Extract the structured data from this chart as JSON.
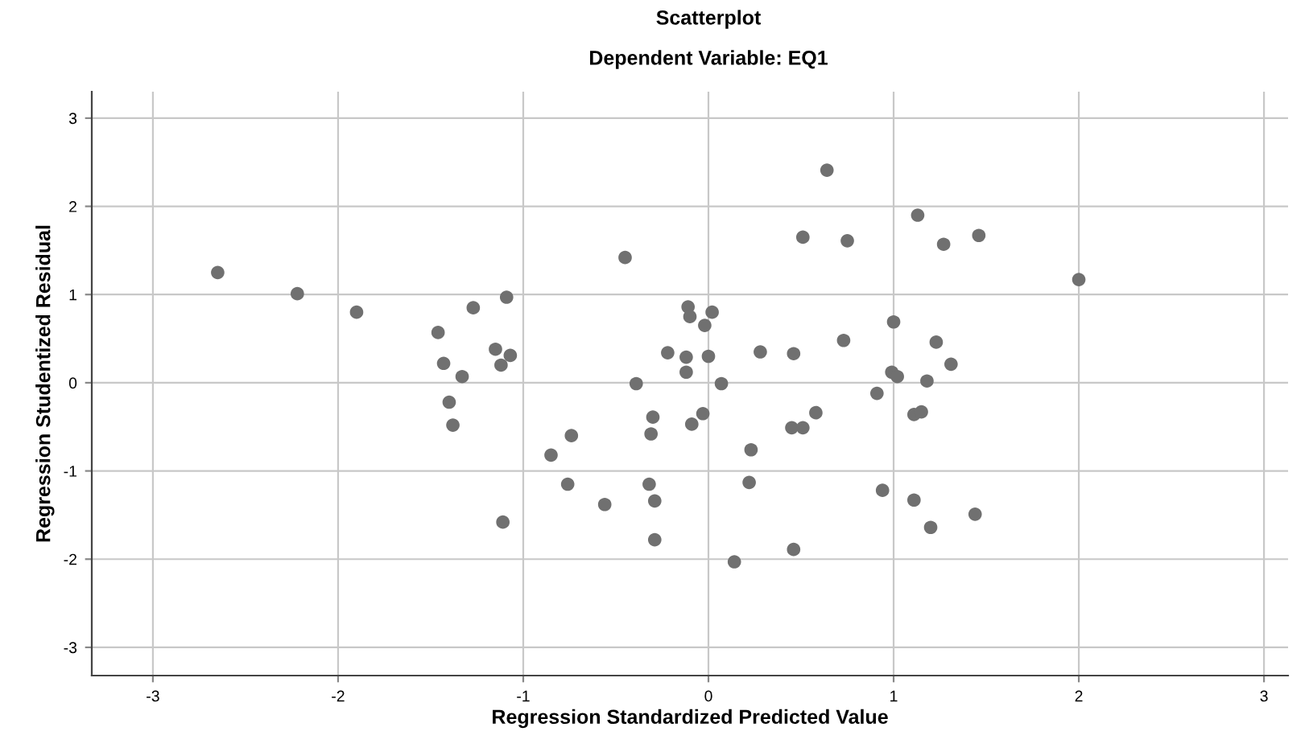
{
  "chart_data": {
    "type": "scatter",
    "title": "Scatterplot",
    "subtitle": "Dependent Variable: EQ1",
    "xlabel": "Regression Standardized Predicted Value",
    "ylabel": "Regression Studentized Residual",
    "x": [
      -2.65,
      -2.22,
      -1.9,
      -1.46,
      -1.43,
      -1.4,
      -1.38,
      -1.33,
      -1.27,
      -1.15,
      -1.12,
      -1.09,
      -1.07,
      -1.11,
      -0.85,
      -0.74,
      -0.76,
      -0.56,
      -0.45,
      -0.39,
      -0.3,
      -0.31,
      -0.32,
      -0.29,
      -0.29,
      -0.22,
      -0.11,
      -0.1,
      -0.12,
      -0.12,
      -0.09,
      -0.03,
      -0.02,
      0.02,
      0.0,
      0.07,
      0.14,
      0.23,
      0.22,
      0.28,
      0.46,
      0.46,
      0.45,
      0.51,
      0.58,
      0.51,
      0.64,
      0.75,
      0.73,
      0.91,
      0.94,
      1.0,
      0.99,
      1.02,
      1.13,
      1.27,
      1.46,
      2.0,
      1.23,
      1.31,
      1.18,
      1.11,
      1.15,
      1.11,
      1.2,
      1.44
    ],
    "values": [
      1.25,
      1.01,
      0.8,
      0.57,
      0.22,
      -0.22,
      -0.48,
      0.07,
      0.85,
      0.38,
      0.2,
      0.97,
      0.31,
      -1.58,
      -0.82,
      -0.6,
      -1.15,
      -1.38,
      1.42,
      -0.01,
      -0.39,
      -0.58,
      -1.15,
      -1.34,
      -1.78,
      0.34,
      0.86,
      0.75,
      0.29,
      0.12,
      -0.47,
      -0.35,
      0.65,
      0.8,
      0.3,
      -0.01,
      -2.03,
      -0.76,
      -1.13,
      0.35,
      0.33,
      -1.89,
      -0.51,
      -0.51,
      -0.34,
      1.65,
      2.41,
      1.61,
      0.48,
      -0.12,
      -1.22,
      0.69,
      0.12,
      0.07,
      1.9,
      1.57,
      1.67,
      1.17,
      0.46,
      0.21,
      0.02,
      -0.36,
      -0.33,
      -1.33,
      -1.64,
      -1.49
    ],
    "color": "#707070",
    "marker": "circle",
    "xlim": [
      -3.33,
      3.13
    ],
    "ylim": [
      -3.32,
      3.3
    ],
    "xticks": [
      -3,
      -2,
      -1,
      0,
      1,
      2,
      3
    ],
    "yticks": [
      -3,
      -2,
      -1,
      0,
      1,
      2,
      3
    ],
    "grid": true
  }
}
